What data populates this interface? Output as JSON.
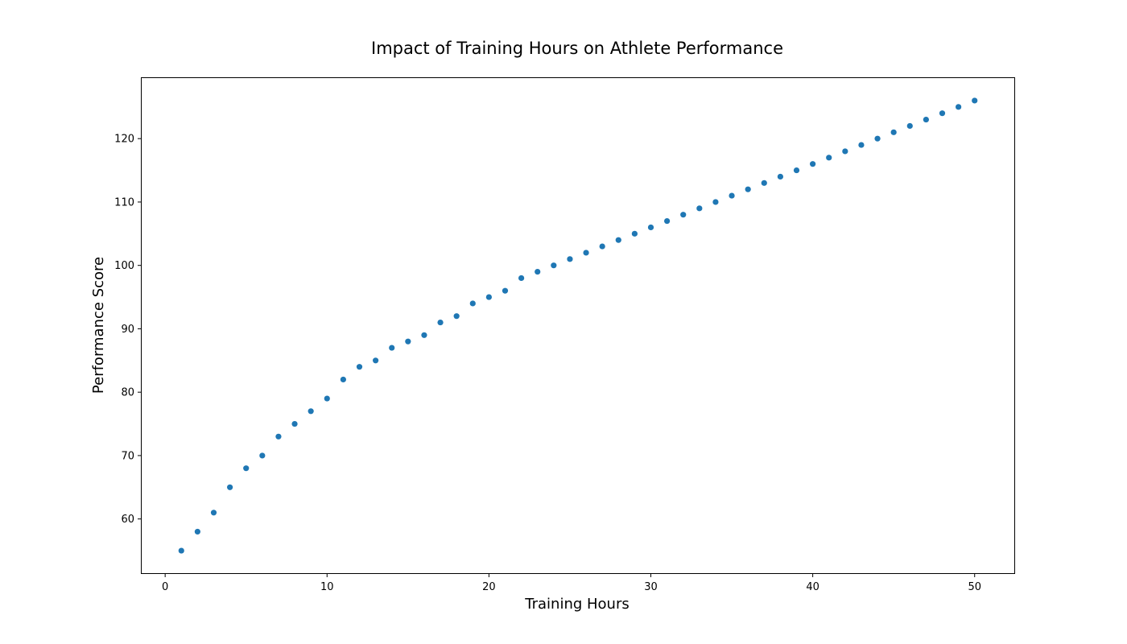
{
  "chart_data": {
    "type": "scatter",
    "title": "Impact of Training Hours on Athlete Performance",
    "xlabel": "Training Hours",
    "ylabel": "Performance Score",
    "xlim": [
      -1.45,
      52.45
    ],
    "ylim": [
      51.45,
      129.55
    ],
    "xticks": [
      0,
      10,
      20,
      30,
      40,
      50
    ],
    "yticks": [
      60,
      70,
      80,
      90,
      100,
      110,
      120
    ],
    "grid": false,
    "marker_color": "#1f77b4",
    "series": [
      {
        "x": [
          1,
          2,
          3,
          4,
          5,
          6,
          7,
          8,
          9,
          10,
          11,
          12,
          13,
          14,
          15,
          16,
          17,
          18,
          19,
          20,
          21,
          22,
          23,
          24,
          25,
          26,
          27,
          28,
          29,
          30,
          31,
          32,
          33,
          34,
          35,
          36,
          37,
          38,
          39,
          40,
          41,
          42,
          43,
          44,
          45,
          46,
          47,
          48,
          49,
          50
        ],
        "y": [
          55,
          58,
          61,
          65,
          68,
          70,
          73,
          75,
          77,
          79,
          82,
          84,
          85,
          87,
          88,
          89,
          91,
          92,
          94,
          95,
          96,
          98,
          99,
          100,
          101,
          102,
          103,
          104,
          105,
          106,
          107,
          108,
          109,
          110,
          111,
          112,
          113,
          114,
          115,
          116,
          117,
          118,
          119,
          120,
          121,
          122,
          123,
          124,
          125,
          126
        ]
      }
    ]
  }
}
